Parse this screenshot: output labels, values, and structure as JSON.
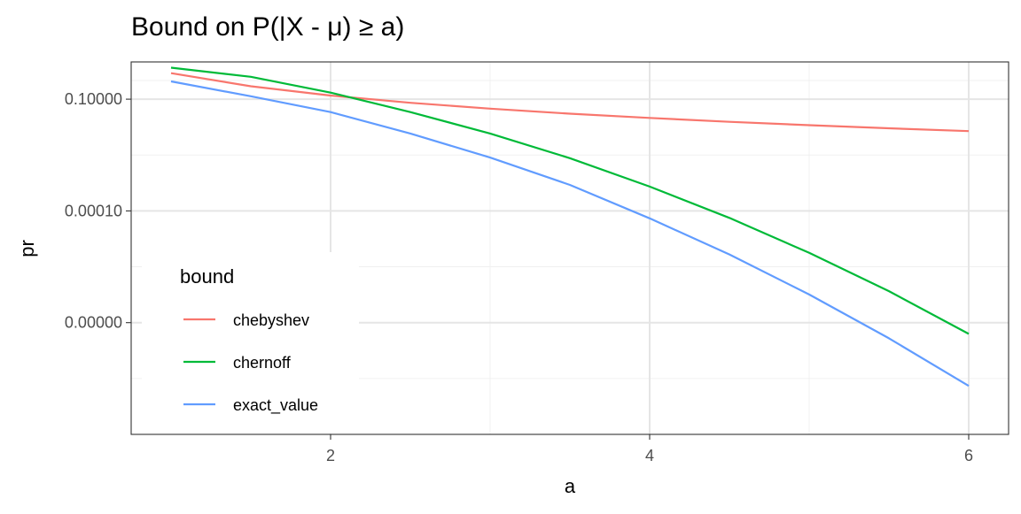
{
  "chart_data": {
    "type": "line",
    "title": "Bound on P(|X - μ) ≥ a)",
    "xlabel": "a",
    "ylabel": "pr",
    "xlim": [
      0.75,
      6.25
    ],
    "x_ticks": [
      2,
      4,
      6
    ],
    "x_tick_labels": [
      "2",
      "4",
      "6"
    ],
    "y_scale": "log",
    "ylim": [
      1e-10,
      1.0
    ],
    "y_ticks": [
      0.1,
      0.0001,
      1e-07
    ],
    "y_tick_labels": [
      "0.10000",
      "0.00010",
      "0.00000"
    ],
    "grid": true,
    "legend": {
      "title": "bound",
      "position": "bottom-left"
    },
    "series": [
      {
        "name": "chebyshev",
        "color": "#F8766D",
        "x": [
          1,
          1.5,
          2,
          2.5,
          3,
          3.5,
          4,
          4.5,
          5,
          5.5,
          6
        ],
        "y": [
          0.5,
          0.222,
          0.125,
          0.08,
          0.0556,
          0.0408,
          0.0313,
          0.0247,
          0.02,
          0.0165,
          0.0139
        ]
      },
      {
        "name": "chernoff",
        "color": "#00BA38",
        "x": [
          1,
          1.5,
          2,
          2.5,
          3,
          3.5,
          4,
          4.5,
          5,
          5.5,
          6
        ],
        "y": [
          0.7,
          0.4,
          0.15,
          0.045,
          0.012,
          0.0026,
          0.00045,
          6.5e-05,
          7.5e-06,
          7e-07,
          5e-08
        ]
      },
      {
        "name": "exact_value",
        "color": "#619CFF",
        "x": [
          1,
          1.5,
          2,
          2.5,
          3,
          3.5,
          4,
          4.5,
          5,
          5.5,
          6
        ],
        "y": [
          0.3,
          0.12,
          0.045,
          0.012,
          0.0027,
          0.0005,
          6.3e-05,
          6.8e-06,
          5.7e-07,
          3.8e-08,
          2e-09
        ]
      }
    ]
  }
}
